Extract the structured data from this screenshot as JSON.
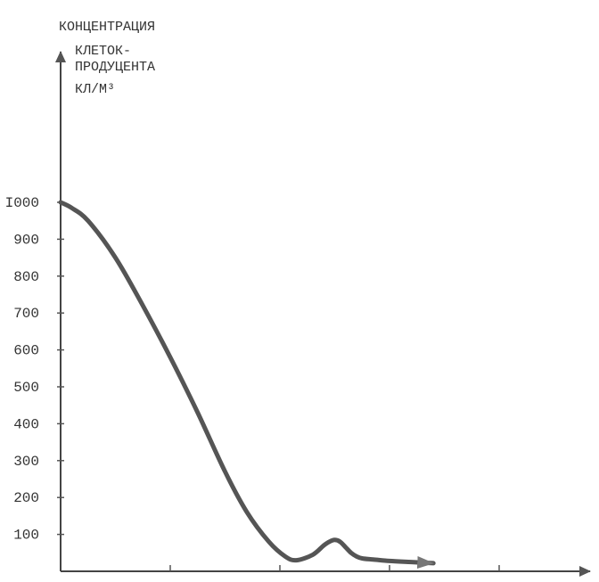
{
  "chart_data": {
    "type": "line",
    "ylabel_lines": [
      "КОНЦЕНТРАЦИЯ",
      "КЛЕТОК-",
      "ПРОДУЦЕНТА",
      "КЛ/М³"
    ],
    "yticks": [
      100,
      200,
      300,
      400,
      500,
      600,
      700,
      800,
      900,
      1000
    ],
    "ytick_labels": [
      "100",
      "200",
      "300",
      "400",
      "500",
      "600",
      "700",
      "800",
      "900",
      "I000"
    ],
    "ylim": [
      0,
      1000
    ],
    "xlim": [
      0,
      5
    ],
    "xticks": [
      1,
      2,
      3,
      4
    ],
    "grid": false,
    "colors": {
      "curve": "#555555",
      "axis": "#333333"
    },
    "series": [
      {
        "x": [
          0,
          0.1,
          0.25,
          0.5,
          0.75,
          1.0,
          1.25,
          1.5,
          1.7,
          1.9,
          2.05,
          2.15,
          2.3,
          2.4,
          2.45,
          2.5,
          2.55,
          2.6,
          2.65,
          2.7,
          2.75,
          2.85,
          3.0,
          3.2,
          3.4
        ],
        "y": [
          1000,
          985,
          950,
          850,
          720,
          580,
          430,
          270,
          160,
          80,
          40,
          30,
          45,
          70,
          80,
          85,
          80,
          65,
          50,
          40,
          35,
          32,
          28,
          25,
          22
        ]
      }
    ]
  }
}
